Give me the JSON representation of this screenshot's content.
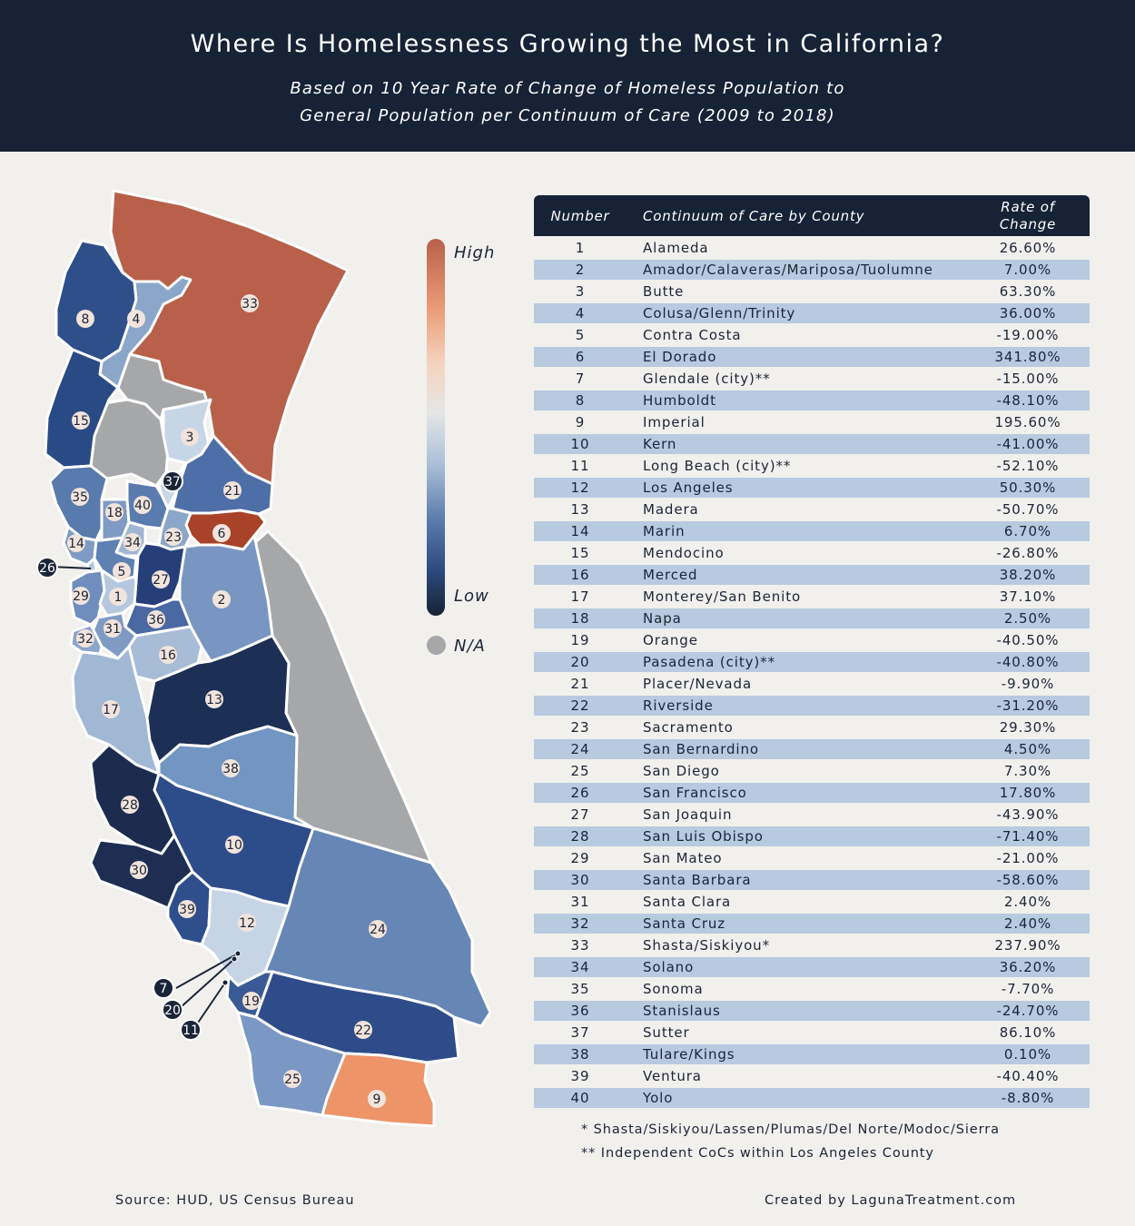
{
  "header": {
    "title": "Where Is Homelessness Growing the Most in California?",
    "subtitle_line1": "Based on 10 Year Rate of Change of Homeless Population to",
    "subtitle_line2": "General Population per Continuum of Care (2009 to 2018)"
  },
  "legend": {
    "high": "High",
    "low": "Low",
    "na": "N/A"
  },
  "colors": {
    "high": "#b8604a",
    "mid": "#e6e6e6",
    "low": "#162235",
    "na": "#a6a7a9",
    "header_bg": "#162235",
    "row_stripe": "#b7cadf",
    "callout": "#1a2436"
  },
  "table": {
    "headers": {
      "number": "Number",
      "name": "Continuum of Care by County",
      "rate_line1": "Rate of",
      "rate_line2": "Change"
    },
    "rows": [
      {
        "num": "1",
        "name": "Alameda",
        "rate": "26.60%"
      },
      {
        "num": "2",
        "name": "Amador/Calaveras/Mariposa/Tuolumne",
        "rate": "7.00%"
      },
      {
        "num": "3",
        "name": "Butte",
        "rate": "63.30%"
      },
      {
        "num": "4",
        "name": "Colusa/Glenn/Trinity",
        "rate": "36.00%"
      },
      {
        "num": "5",
        "name": "Contra Costa",
        "rate": "-19.00%"
      },
      {
        "num": "6",
        "name": "El Dorado",
        "rate": "341.80%"
      },
      {
        "num": "7",
        "name": "Glendale (city)**",
        "rate": "-15.00%"
      },
      {
        "num": "8",
        "name": "Humboldt",
        "rate": "-48.10%"
      },
      {
        "num": "9",
        "name": "Imperial",
        "rate": "195.60%"
      },
      {
        "num": "10",
        "name": "Kern",
        "rate": "-41.00%"
      },
      {
        "num": "11",
        "name": "Long Beach (city)**",
        "rate": "-52.10%"
      },
      {
        "num": "12",
        "name": "Los Angeles",
        "rate": "50.30%"
      },
      {
        "num": "13",
        "name": "Madera",
        "rate": "-50.70%"
      },
      {
        "num": "14",
        "name": "Marin",
        "rate": "6.70%"
      },
      {
        "num": "15",
        "name": "Mendocino",
        "rate": "-26.80%"
      },
      {
        "num": "16",
        "name": "Merced",
        "rate": "38.20%"
      },
      {
        "num": "17",
        "name": "Monterey/San Benito",
        "rate": "37.10%"
      },
      {
        "num": "18",
        "name": "Napa",
        "rate": "2.50%"
      },
      {
        "num": "19",
        "name": "Orange",
        "rate": "-40.50%"
      },
      {
        "num": "20",
        "name": "Pasadena (city)**",
        "rate": "-40.80%"
      },
      {
        "num": "21",
        "name": "Placer/Nevada",
        "rate": "-9.90%"
      },
      {
        "num": "22",
        "name": "Riverside",
        "rate": "-31.20%"
      },
      {
        "num": "23",
        "name": "Sacramento",
        "rate": "29.30%"
      },
      {
        "num": "24",
        "name": "San Bernardino",
        "rate": "4.50%"
      },
      {
        "num": "25",
        "name": "San Diego",
        "rate": "7.30%"
      },
      {
        "num": "26",
        "name": "San Francisco",
        "rate": "17.80%"
      },
      {
        "num": "27",
        "name": "San Joaquin",
        "rate": "-43.90%"
      },
      {
        "num": "28",
        "name": "San Luis Obispo",
        "rate": "-71.40%"
      },
      {
        "num": "29",
        "name": "San Mateo",
        "rate": "-21.00%"
      },
      {
        "num": "30",
        "name": "Santa Barbara",
        "rate": "-58.60%"
      },
      {
        "num": "31",
        "name": "Santa Clara",
        "rate": "2.40%"
      },
      {
        "num": "32",
        "name": "Santa Cruz",
        "rate": "2.40%"
      },
      {
        "num": "33",
        "name": "Shasta/Siskiyou*",
        "rate": "237.90%"
      },
      {
        "num": "34",
        "name": "Solano",
        "rate": "36.20%"
      },
      {
        "num": "35",
        "name": "Sonoma",
        "rate": "-7.70%"
      },
      {
        "num": "36",
        "name": "Stanislaus",
        "rate": "-24.70%"
      },
      {
        "num": "37",
        "name": "Sutter",
        "rate": "86.10%"
      },
      {
        "num": "38",
        "name": "Tulare/Kings",
        "rate": "0.10%"
      },
      {
        "num": "39",
        "name": "Ventura",
        "rate": "-40.40%"
      },
      {
        "num": "40",
        "name": "Yolo",
        "rate": "-8.80%"
      }
    ]
  },
  "notes": {
    "note1": "* Shasta/Siskiyou/Lassen/Plumas/Del Norte/Modoc/Sierra",
    "note2": "** Independent CoCs within Los Angeles County"
  },
  "footer": {
    "source": "Source: HUD, US Census Bureau",
    "created": "Created by LagunaTreatment.com"
  }
}
